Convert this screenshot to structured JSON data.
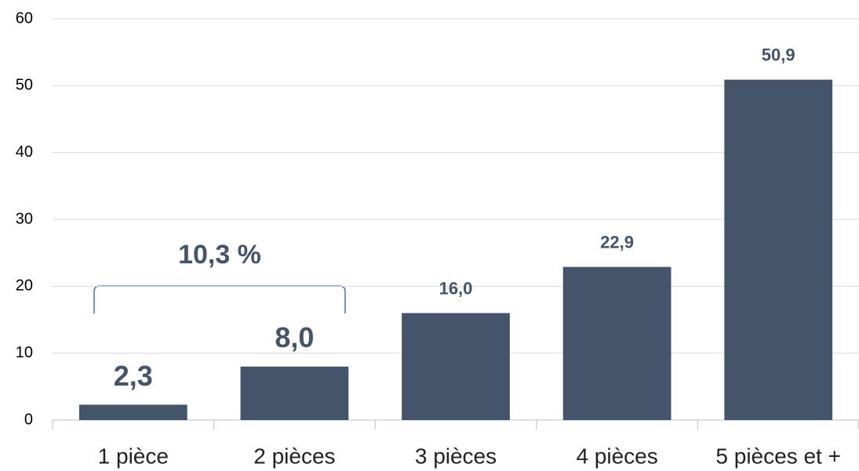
{
  "chart_data": {
    "type": "bar",
    "categories": [
      "1 pièce",
      "2 pièces",
      "3 pièces",
      "4 pièces",
      "5 pièces et +"
    ],
    "values": [
      2.3,
      8.0,
      16.0,
      22.9,
      50.9
    ],
    "value_labels": [
      "2,3",
      "8,0",
      "16,0",
      "22,9",
      "50,9"
    ],
    "color": "#44546a",
    "ylim": [
      0,
      60
    ],
    "yticks": [
      0,
      10,
      20,
      30,
      40,
      50,
      60
    ],
    "grid": true,
    "annotation": "10,3 %"
  }
}
